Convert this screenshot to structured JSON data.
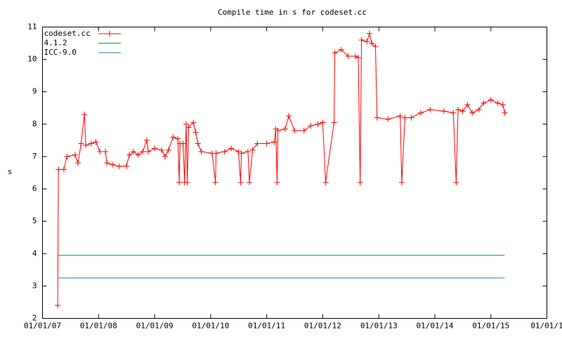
{
  "chart_data": {
    "type": "line",
    "title": "Compile time in s for codeset.cc",
    "y_label": "s",
    "xlim": [
      "2007-01-01",
      "2016-01-01"
    ],
    "xticks": [
      {
        "value": "2007-01-01",
        "label": "01/01/07"
      },
      {
        "value": "2008-01-01",
        "label": "01/01/08"
      },
      {
        "value": "2009-01-01",
        "label": "01/01/09"
      },
      {
        "value": "2010-01-01",
        "label": "01/01/10"
      },
      {
        "value": "2011-01-01",
        "label": "01/01/11"
      },
      {
        "value": "2012-01-01",
        "label": "01/01/12"
      },
      {
        "value": "2013-01-01",
        "label": "01/01/13"
      },
      {
        "value": "2014-01-01",
        "label": "01/01/14"
      },
      {
        "value": "2015-01-01",
        "label": "01/01/15"
      },
      {
        "value": "2016-01-01",
        "label": "01/01/1"
      }
    ],
    "ylim": [
      2,
      11
    ],
    "yticks": [
      2,
      3,
      4,
      5,
      6,
      7,
      8,
      9,
      10,
      11
    ],
    "legend": "top-left",
    "series": [
      {
        "name": "codeset.cc",
        "color": "#ff0000",
        "marker": "+",
        "x": [
          "2007-04-10",
          "2007-04-15",
          "2007-05-20",
          "2007-06-10",
          "2007-08-01",
          "2007-08-20",
          "2007-09-10",
          "2007-10-01",
          "2007-10-10",
          "2007-11-15",
          "2007-12-15",
          "2008-01-10",
          "2008-02-15",
          "2008-02-25",
          "2008-04-01",
          "2008-05-15",
          "2008-07-01",
          "2008-07-20",
          "2008-08-15",
          "2008-09-15",
          "2008-10-15",
          "2008-11-10",
          "2008-11-20",
          "2009-01-01",
          "2009-02-15",
          "2009-03-10",
          "2009-04-01",
          "2009-05-01",
          "2009-06-01",
          "2009-06-10",
          "2009-06-15",
          "2009-07-05",
          "2009-07-15",
          "2009-07-25",
          "2009-08-01",
          "2009-08-10",
          "2009-09-10",
          "2009-09-25",
          "2009-10-10",
          "2009-11-01",
          "2010-01-10",
          "2010-02-01",
          "2010-02-05",
          "2010-04-01",
          "2010-05-15",
          "2010-07-01",
          "2010-07-15",
          "2010-07-20",
          "2010-09-01",
          "2010-09-10",
          "2010-10-01",
          "2010-11-01",
          "2011-01-01",
          "2011-02-20",
          "2011-03-01",
          "2011-03-10",
          "2011-03-15",
          "2011-05-01",
          "2011-05-25",
          "2011-07-01",
          "2011-09-01",
          "2011-10-15",
          "2011-12-01",
          "2012-01-01",
          "2012-01-20",
          "2012-03-15",
          "2012-03-20",
          "2012-05-01",
          "2012-06-15",
          "2012-08-01",
          "2012-08-20",
          "2012-09-01",
          "2012-09-10",
          "2012-10-15",
          "2012-11-01",
          "2012-11-15",
          "2012-12-10",
          "2012-12-20",
          "2013-03-01",
          "2013-05-20",
          "2013-05-30",
          "2013-06-20",
          "2013-08-01",
          "2013-10-01",
          "2013-12-01",
          "2014-03-01",
          "2014-05-01",
          "2014-05-20",
          "2014-06-01",
          "2014-07-01",
          "2014-08-01",
          "2014-09-01",
          "2014-10-15",
          "2014-11-15",
          "2015-01-01",
          "2015-02-15",
          "2015-03-20",
          "2015-04-01"
        ],
        "values": [
          2.4,
          6.6,
          6.6,
          7.0,
          7.05,
          6.8,
          7.4,
          8.3,
          7.35,
          7.4,
          7.45,
          7.15,
          7.15,
          6.8,
          6.75,
          6.7,
          6.7,
          7.05,
          7.15,
          7.05,
          7.15,
          7.5,
          7.15,
          7.25,
          7.2,
          7.0,
          7.2,
          7.6,
          7.55,
          6.2,
          7.4,
          7.4,
          6.2,
          8.0,
          6.2,
          7.9,
          8.05,
          7.75,
          7.4,
          7.15,
          7.1,
          6.2,
          7.1,
          7.15,
          7.25,
          7.15,
          6.2,
          7.1,
          7.15,
          6.2,
          7.2,
          7.4,
          7.4,
          7.45,
          7.85,
          6.2,
          7.8,
          7.85,
          8.25,
          7.8,
          7.8,
          7.95,
          8.0,
          8.05,
          6.2,
          8.05,
          10.2,
          10.3,
          10.1,
          10.1,
          10.05,
          6.2,
          10.6,
          10.55,
          10.8,
          10.5,
          10.4,
          8.2,
          8.15,
          8.25,
          6.2,
          8.2,
          8.2,
          8.35,
          8.45,
          8.4,
          8.35,
          6.2,
          8.45,
          8.4,
          8.6,
          8.35,
          8.45,
          8.65,
          8.75,
          8.65,
          8.6,
          8.35
        ]
      },
      {
        "name": "4.1.2",
        "color": "#00b000",
        "x": [
          "2007-04-10",
          "2015-04-01"
        ],
        "values": [
          3.95,
          3.95
        ]
      },
      {
        "name": "ICC-9.0",
        "color": "#1f7fbf",
        "x": [
          "2007-04-10",
          "2015-04-01"
        ],
        "values": [
          3.25,
          3.25
        ]
      }
    ]
  }
}
